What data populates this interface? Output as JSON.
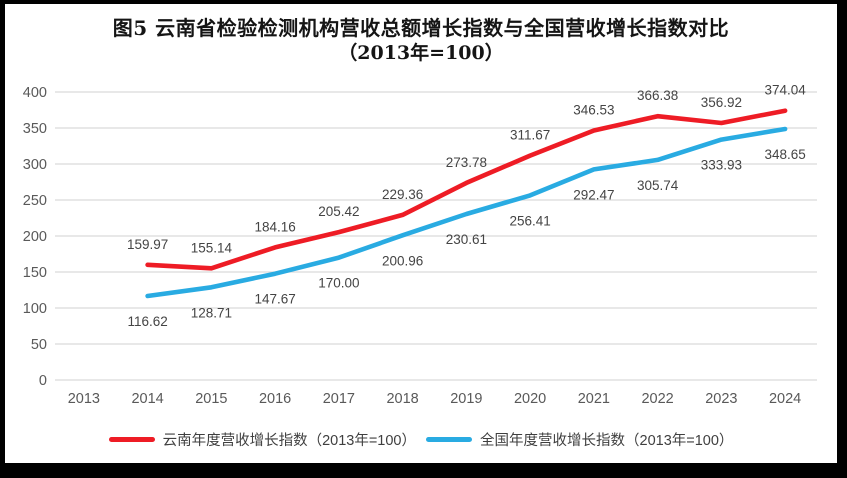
{
  "title": {
    "line1": "图5  云南省检验检测机构营收总额增长指数与全国营收增长指数对比",
    "line2": "（2013年=100）"
  },
  "chart_data": {
    "type": "line",
    "categories": [
      "2013",
      "2014",
      "2015",
      "2016",
      "2017",
      "2018",
      "2019",
      "2020",
      "2021",
      "2022",
      "2023",
      "2024"
    ],
    "series": [
      {
        "name": "云南年度营收增长指数（2013年=100）",
        "color": "#ee1c25",
        "label_position": "above",
        "values": [
          null,
          159.97,
          155.14,
          184.16,
          205.42,
          229.36,
          273.78,
          311.67,
          346.53,
          366.38,
          356.92,
          374.04
        ]
      },
      {
        "name": "全国年度营收增长指数（2013年=100）",
        "color": "#29abe2",
        "label_position": "below",
        "values": [
          null,
          116.62,
          128.71,
          147.67,
          170.0,
          200.96,
          230.61,
          256.41,
          292.47,
          305.74,
          333.93,
          348.65
        ]
      }
    ],
    "ylim": [
      0,
      400
    ],
    "ytick_step": 50,
    "grid": "horizontal",
    "gridline_color": "#d9d9d9",
    "axis_label_color": "#595959",
    "data_label_color": "#444444",
    "legend_position": "bottom",
    "data_label_decimals": 2
  }
}
